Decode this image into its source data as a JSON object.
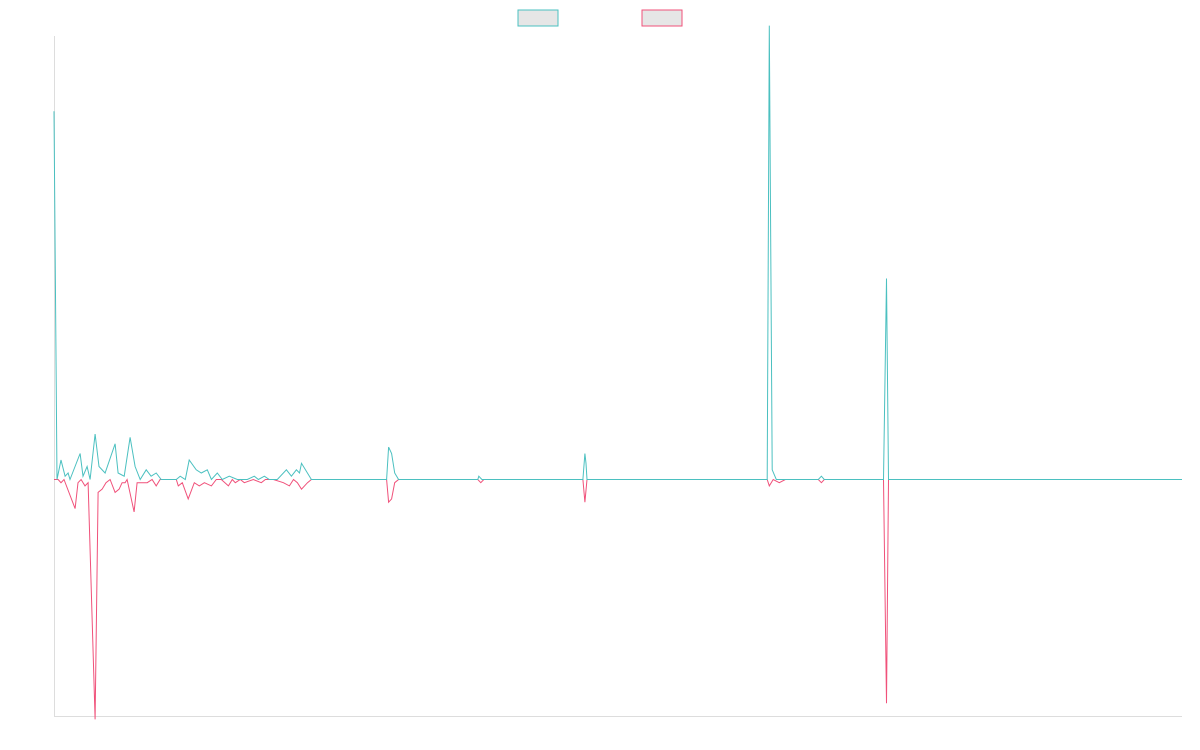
{
  "chart_data": {
    "type": "line",
    "title": "",
    "xlabel": "",
    "ylabel": "",
    "x_range": [
      0,
      1
    ],
    "ylim": [
      -0.64,
      1.2
    ],
    "grid": false,
    "legend": "top-center",
    "series": [
      {
        "color": "#4bc0c0",
        "legend_fill": "#e6e6e6",
        "points": [
          [
            0.0,
            0.9965
          ],
          [
            0.0027,
            0.0
          ],
          [
            0.0062,
            0.0526
          ],
          [
            0.0098,
            0.0088
          ],
          [
            0.0125,
            0.0175
          ],
          [
            0.0142,
            0.0
          ],
          [
            0.0231,
            0.0702
          ],
          [
            0.0257,
            0.0088
          ],
          [
            0.0293,
            0.0351
          ],
          [
            0.032,
            0.0
          ],
          [
            0.0364,
            0.1228
          ],
          [
            0.0399,
            0.0351
          ],
          [
            0.0453,
            0.0175
          ],
          [
            0.0542,
            0.0965
          ],
          [
            0.0568,
            0.0175
          ],
          [
            0.0622,
            0.0088
          ],
          [
            0.0675,
            0.114
          ],
          [
            0.0719,
            0.0351
          ],
          [
            0.0764,
            0.0
          ],
          [
            0.0817,
            0.0263
          ],
          [
            0.0861,
            0.0088
          ],
          [
            0.0906,
            0.0175
          ],
          [
            0.095,
            0.0
          ],
          [
            0.1084,
            0.0
          ],
          [
            0.1119,
            0.0088
          ],
          [
            0.1164,
            0.0
          ],
          [
            0.1199,
            0.0526
          ],
          [
            0.1261,
            0.0263
          ],
          [
            0.1306,
            0.0175
          ],
          [
            0.1359,
            0.0263
          ],
          [
            0.1395,
            0.0
          ],
          [
            0.1448,
            0.0175
          ],
          [
            0.1492,
            0.0
          ],
          [
            0.1554,
            0.0088
          ],
          [
            0.1625,
            0.0
          ],
          [
            0.167,
            0.0
          ],
          [
            0.1714,
            0.0
          ],
          [
            0.1776,
            0.0088
          ],
          [
            0.1812,
            0.0
          ],
          [
            0.1865,
            0.0088
          ],
          [
            0.1909,
            0.0
          ],
          [
            0.198,
            0.0
          ],
          [
            0.206,
            0.0263
          ],
          [
            0.2105,
            0.0088
          ],
          [
            0.2149,
            0.0263
          ],
          [
            0.2176,
            0.0175
          ],
          [
            0.2194,
            0.0439
          ],
          [
            0.2282,
            0.0
          ],
          [
            0.2949,
            0.0
          ],
          [
            0.2966,
            0.0877
          ],
          [
            0.2993,
            0.0702
          ],
          [
            0.302,
            0.0175
          ],
          [
            0.3055,
            0.0
          ],
          [
            0.3073,
            0.0
          ],
          [
            0.3091,
            0.0
          ],
          [
            0.3757,
            0.0
          ],
          [
            0.3766,
            0.0088
          ],
          [
            0.3793,
            0.0
          ],
          [
            0.3828,
            0.0
          ],
          [
            0.3864,
            0.0
          ],
          [
            0.4689,
            0.0
          ],
          [
            0.4707,
            0.0702
          ],
          [
            0.4716,
            0.0439
          ],
          [
            0.4725,
            0.0
          ],
          [
            0.6323,
            0.0
          ],
          [
            0.6341,
            1.2281
          ],
          [
            0.6367,
            0.0263
          ],
          [
            0.6403,
            0.0
          ],
          [
            0.643,
            0.0
          ],
          [
            0.6457,
            0.0
          ],
          [
            0.6483,
            0.0
          ],
          [
            0.6501,
            0.0
          ],
          [
            0.6776,
            0.0
          ],
          [
            0.6803,
            0.0088
          ],
          [
            0.6829,
            0.0
          ],
          [
            0.7354,
            0.0
          ],
          [
            0.738,
            0.5439
          ],
          [
            0.7398,
            0.0
          ],
          [
            1.0,
            0.0
          ]
        ]
      },
      {
        "color": "#f0517a",
        "legend_fill": "#e6e6e6",
        "points": [
          [
            0.0,
            0.0
          ],
          [
            0.0036,
            0.0
          ],
          [
            0.0062,
            -0.0088
          ],
          [
            0.0089,
            0.0
          ],
          [
            0.0187,
            -0.0789
          ],
          [
            0.0213,
            -0.0088
          ],
          [
            0.024,
            0.0
          ],
          [
            0.0275,
            -0.0175
          ],
          [
            0.0302,
            -0.0088
          ],
          [
            0.0364,
            -0.6491
          ],
          [
            0.0391,
            -0.0351
          ],
          [
            0.0426,
            -0.0263
          ],
          [
            0.0461,
            -0.0088
          ],
          [
            0.0497,
            0.0
          ],
          [
            0.0542,
            -0.0351
          ],
          [
            0.0577,
            -0.0263
          ],
          [
            0.0604,
            -0.0088
          ],
          [
            0.063,
            -0.0088
          ],
          [
            0.0648,
            0.0
          ],
          [
            0.071,
            -0.0877
          ],
          [
            0.0737,
            -0.0088
          ],
          [
            0.0781,
            -0.0088
          ],
          [
            0.0826,
            -0.0088
          ],
          [
            0.087,
            0.0
          ],
          [
            0.0906,
            -0.0175
          ],
          [
            0.0941,
            0.0
          ],
          [
            0.1084,
            0.0
          ],
          [
            0.1102,
            -0.0175
          ],
          [
            0.1137,
            -0.0088
          ],
          [
            0.119,
            -0.0526
          ],
          [
            0.1244,
            -0.0088
          ],
          [
            0.1288,
            -0.0175
          ],
          [
            0.1333,
            -0.0088
          ],
          [
            0.1395,
            -0.0175
          ],
          [
            0.1439,
            0.0
          ],
          [
            0.1483,
            0.0
          ],
          [
            0.1546,
            -0.0175
          ],
          [
            0.1581,
            0.0
          ],
          [
            0.1607,
            -0.0088
          ],
          [
            0.1652,
            0.0
          ],
          [
            0.1687,
            -0.0088
          ],
          [
            0.1767,
            0.0
          ],
          [
            0.1838,
            -0.0088
          ],
          [
            0.1874,
            0.0
          ],
          [
            0.1945,
            0.0
          ],
          [
            0.2034,
            -0.0088
          ],
          [
            0.2087,
            -0.0175
          ],
          [
            0.2123,
            0.0
          ],
          [
            0.2158,
            -0.0088
          ],
          [
            0.2194,
            -0.0263
          ],
          [
            0.2247,
            -0.0088
          ],
          [
            0.2282,
            0.0
          ],
          [
            0.2949,
            0.0
          ],
          [
            0.2966,
            -0.0614
          ],
          [
            0.2993,
            -0.0526
          ],
          [
            0.302,
            -0.0088
          ],
          [
            0.3055,
            0.0
          ],
          [
            0.3757,
            0.0
          ],
          [
            0.3784,
            -0.0088
          ],
          [
            0.381,
            0.0
          ],
          [
            0.3855,
            0.0
          ],
          [
            0.4689,
            0.0
          ],
          [
            0.4707,
            -0.0614
          ],
          [
            0.4725,
            0.0
          ],
          [
            0.6323,
            0.0
          ],
          [
            0.6341,
            -0.0175
          ],
          [
            0.6376,
            0.0
          ],
          [
            0.643,
            -0.0088
          ],
          [
            0.6483,
            0.0
          ],
          [
            0.6776,
            0.0
          ],
          [
            0.6803,
            -0.0088
          ],
          [
            0.6829,
            0.0
          ],
          [
            0.7354,
            0.0
          ],
          [
            0.738,
            -0.6053
          ],
          [
            0.7398,
            0.0
          ],
          [
            1.0,
            0.0
          ]
        ]
      }
    ]
  }
}
